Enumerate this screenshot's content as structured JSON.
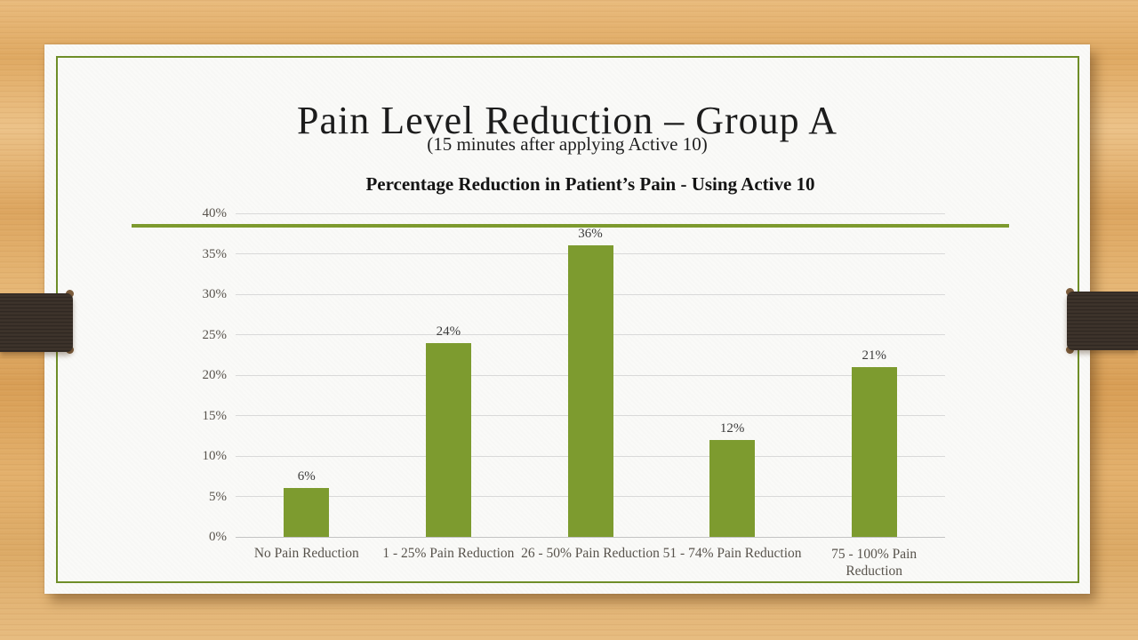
{
  "slide": {
    "title": "Pain Level Reduction – Group A",
    "subtitle": "(15 minutes after applying Active 10)"
  },
  "chart_data": {
    "type": "bar",
    "title": "Percentage Reduction in Patient’s Pain - Using Active 10",
    "categories": [
      "No Pain Reduction",
      "1 - 25% Pain Reduction",
      "26 - 50% Pain Reduction",
      "51 - 74% Pain Reduction",
      "75 - 100% Pain Reduction"
    ],
    "values": [
      6,
      24,
      36,
      12,
      21
    ],
    "data_labels": [
      "6%",
      "24%",
      "36%",
      "12%",
      "21%"
    ],
    "ytick_labels": [
      "0%",
      "5%",
      "10%",
      "15%",
      "20%",
      "25%",
      "30%",
      "35%",
      "40%"
    ],
    "ylim": [
      0,
      40
    ],
    "ytick_step": 5,
    "xlabel": "",
    "ylabel": "",
    "grid": true,
    "legend": false,
    "bar_color": "#7d9b2f",
    "gridline_color": "#d9d9d9"
  },
  "theme": {
    "accent_green": "#7d9a2e",
    "border_green": "#6f8e28",
    "ribbon_brown": "#3b3129",
    "wood_tan": "#e3b06c"
  }
}
